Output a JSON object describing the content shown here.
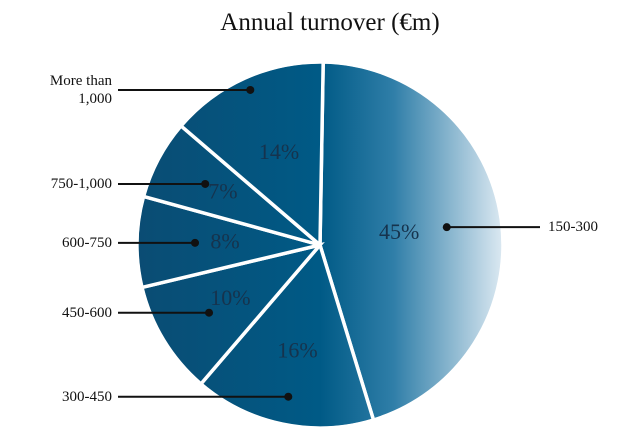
{
  "chart_data": {
    "type": "pie",
    "title": "Annual turnover (€m)",
    "categories": [
      "150-300",
      "300-450",
      "450-600",
      "600-750",
      "750-1,000",
      "More than 1,000"
    ],
    "values": [
      45,
      16,
      10,
      8,
      7,
      14
    ],
    "value_labels": [
      "45%",
      "16%",
      "10%",
      "8%",
      "7%",
      "14%"
    ]
  }
}
